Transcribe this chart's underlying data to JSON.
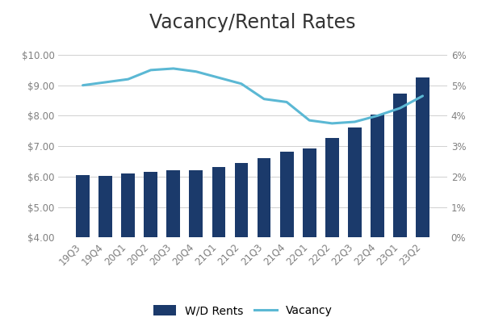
{
  "title": "Vacancy/Rental Rates",
  "categories": [
    "19Q3",
    "19Q4",
    "20Q1",
    "20Q2",
    "20Q3",
    "20Q4",
    "21Q1",
    "21Q2",
    "21Q3",
    "21Q4",
    "22Q1",
    "22Q2",
    "22Q3",
    "22Q4",
    "23Q1",
    "23Q2"
  ],
  "bar_values": [
    6.05,
    6.03,
    6.1,
    6.17,
    6.22,
    6.2,
    6.32,
    6.45,
    6.6,
    6.82,
    6.92,
    7.28,
    7.62,
    8.05,
    8.72,
    9.25
  ],
  "line_values": [
    5.0,
    5.1,
    5.2,
    5.5,
    5.55,
    5.45,
    5.25,
    5.05,
    4.55,
    4.45,
    3.85,
    3.75,
    3.8,
    4.0,
    4.25,
    4.65
  ],
  "bar_color": "#1B3A6B",
  "line_color": "#5BB8D4",
  "ylim_left": [
    4.0,
    10.5
  ],
  "ylim_right": [
    0.0,
    6.5
  ],
  "yticks_left": [
    4.0,
    5.0,
    6.0,
    7.0,
    8.0,
    9.0,
    10.0
  ],
  "ytick_labels_left": [
    "$4.00",
    "$5.00",
    "$6.00",
    "$7.00",
    "$8.00",
    "$9.00",
    "$10.00"
  ],
  "yticks_right": [
    0,
    1,
    2,
    3,
    4,
    5,
    6
  ],
  "ytick_labels_right": [
    "0%",
    "1%",
    "2%",
    "3%",
    "4%",
    "5%",
    "6%"
  ],
  "legend_bar_label": "W/D Rents",
  "legend_line_label": "Vacancy",
  "background_color": "#ffffff",
  "grid_color": "#d0d0d0",
  "title_fontsize": 17,
  "tick_fontsize": 8.5,
  "legend_fontsize": 10,
  "bar_bottom": 4.0
}
